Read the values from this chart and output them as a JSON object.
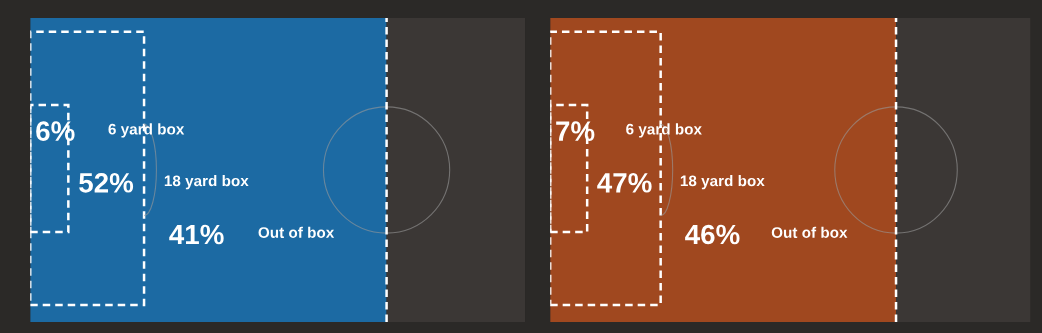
{
  "chart_data": [
    {
      "type": "other",
      "categories": [
        "6 yard box",
        "18 yard box",
        "Out of box"
      ],
      "values": [
        6,
        52,
        41
      ],
      "value_labels": [
        "6%",
        "52%",
        "41%"
      ],
      "color": "#1c6aa3"
    },
    {
      "type": "other",
      "categories": [
        "6 yard box",
        "18 yard box",
        "Out of box"
      ],
      "values": [
        7,
        47,
        46
      ],
      "value_labels": [
        "7%",
        "47%",
        "46%"
      ],
      "color": "#a0481f"
    }
  ]
}
